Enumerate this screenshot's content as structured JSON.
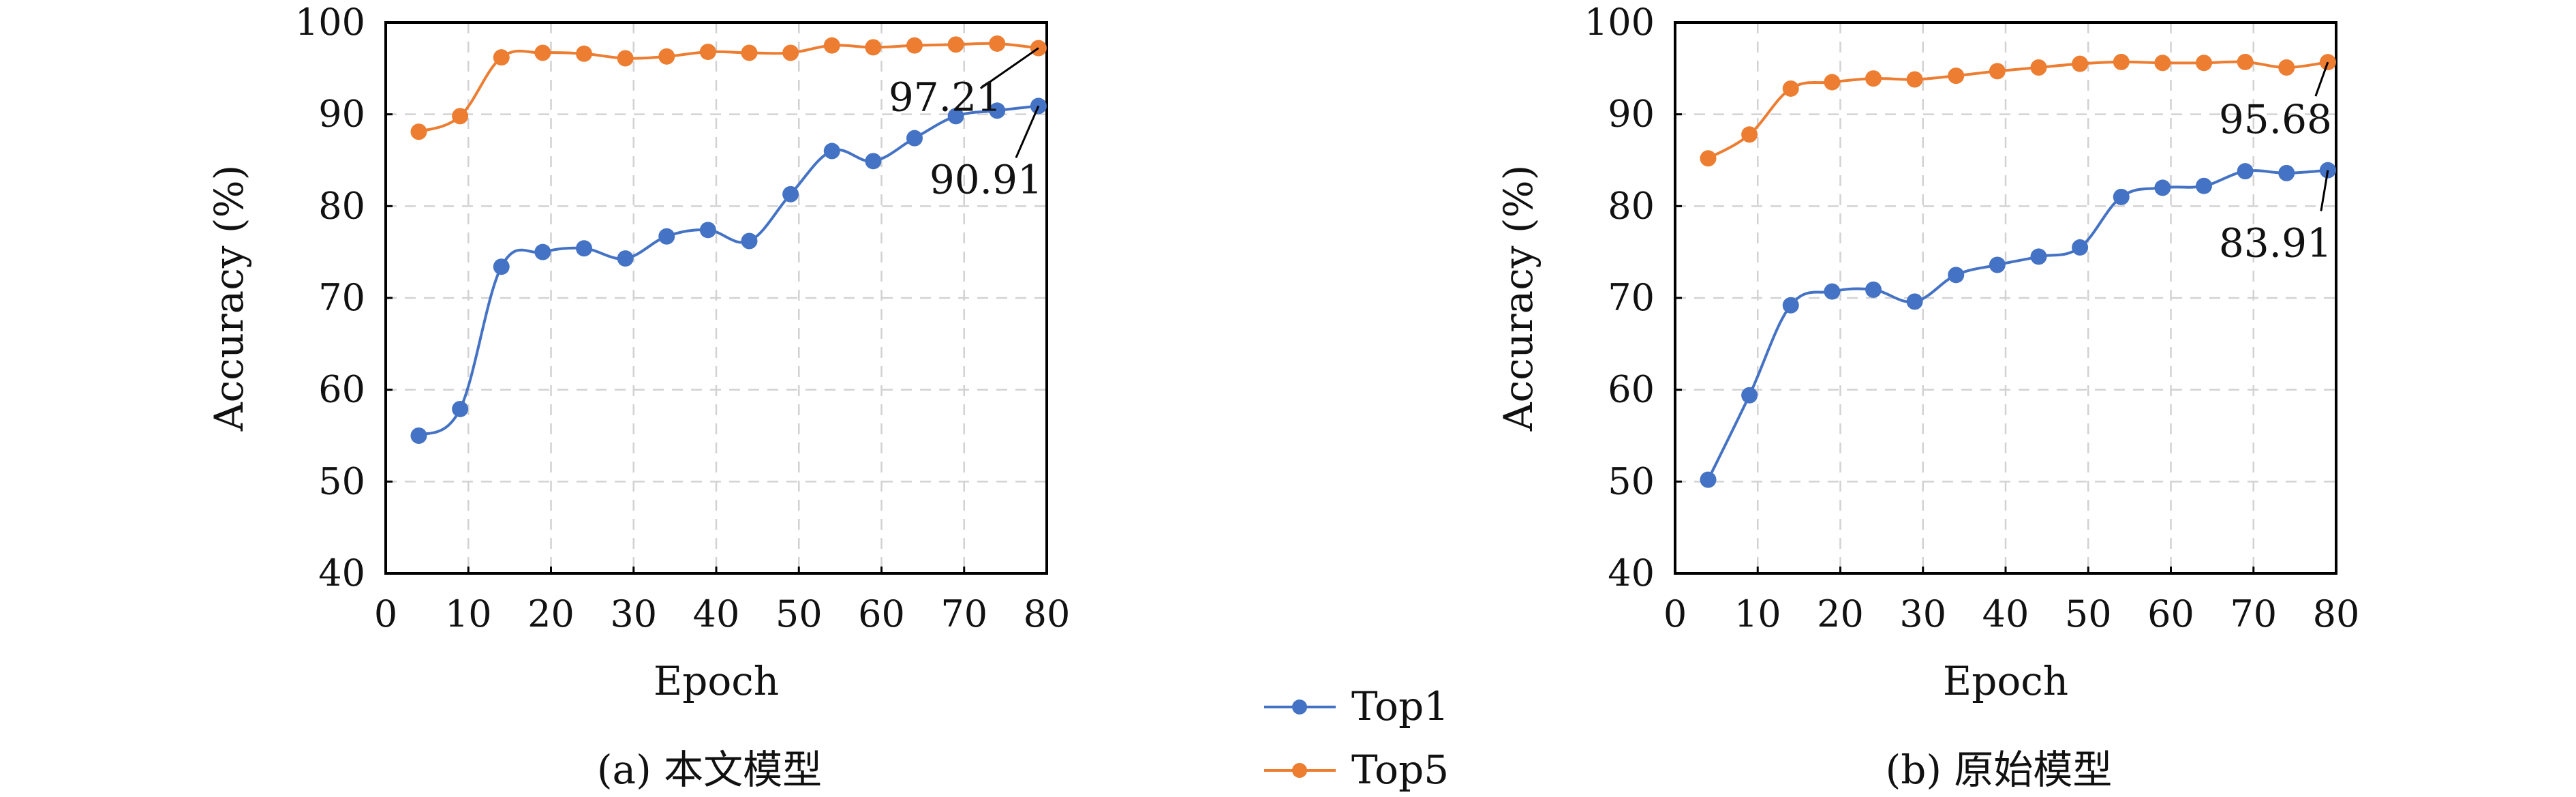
{
  "colors": {
    "top1": "#4472C4",
    "top5": "#ED7D31"
  },
  "legend": {
    "top1": "Top1",
    "top5": "Top5"
  },
  "chart_data": [
    {
      "type": "line",
      "caption": "(a) 本文模型",
      "xlabel": "Epoch",
      "ylabel": "Accuracy (%)",
      "xlim": [
        0,
        80
      ],
      "ylim": [
        40,
        100
      ],
      "xticks": [
        0,
        10,
        20,
        30,
        40,
        50,
        60,
        70,
        80
      ],
      "yticks": [
        40,
        50,
        60,
        70,
        80,
        90,
        100
      ],
      "grid": true,
      "x": [
        4,
        9,
        14,
        19,
        24,
        29,
        34,
        39,
        44,
        49,
        54,
        59,
        64,
        69,
        74,
        79
      ],
      "series": [
        {
          "name": "Top1",
          "values": [
            55.0,
            57.9,
            73.4,
            75.0,
            75.4,
            74.3,
            76.7,
            77.4,
            76.2,
            81.3,
            86.0,
            84.9,
            87.4,
            89.8,
            90.4,
            90.91
          ]
        },
        {
          "name": "Top5",
          "values": [
            88.1,
            89.8,
            96.2,
            96.7,
            96.6,
            96.1,
            96.3,
            96.8,
            96.7,
            96.7,
            97.5,
            97.3,
            97.5,
            97.6,
            97.7,
            97.21
          ]
        }
      ],
      "annotations": [
        {
          "text": "97.21",
          "x": 79,
          "y": 97.21
        },
        {
          "text": "90.91",
          "x": 79,
          "y": 90.91
        }
      ]
    },
    {
      "type": "line",
      "caption": "(b) 原始模型",
      "xlabel": "Epoch",
      "ylabel": "Accuracy (%)",
      "xlim": [
        0,
        80
      ],
      "ylim": [
        40,
        100
      ],
      "xticks": [
        0,
        10,
        20,
        30,
        40,
        50,
        60,
        70,
        80
      ],
      "yticks": [
        40,
        50,
        60,
        70,
        80,
        90,
        100
      ],
      "grid": true,
      "x": [
        4,
        9,
        14,
        19,
        24,
        29,
        34,
        39,
        44,
        49,
        54,
        59,
        64,
        69,
        74,
        79
      ],
      "series": [
        {
          "name": "Top1",
          "values": [
            50.2,
            59.4,
            69.2,
            70.7,
            70.9,
            69.6,
            72.5,
            73.6,
            74.5,
            75.5,
            81.0,
            82.0,
            82.2,
            83.8,
            83.6,
            83.91
          ]
        },
        {
          "name": "Top5",
          "values": [
            85.2,
            87.8,
            92.8,
            93.5,
            93.9,
            93.8,
            94.2,
            94.7,
            95.1,
            95.5,
            95.7,
            95.6,
            95.6,
            95.7,
            95.1,
            95.68
          ]
        }
      ],
      "annotations": [
        {
          "text": "95.68",
          "x": 79,
          "y": 95.68
        },
        {
          "text": "83.91",
          "x": 79,
          "y": 83.91
        }
      ]
    }
  ]
}
